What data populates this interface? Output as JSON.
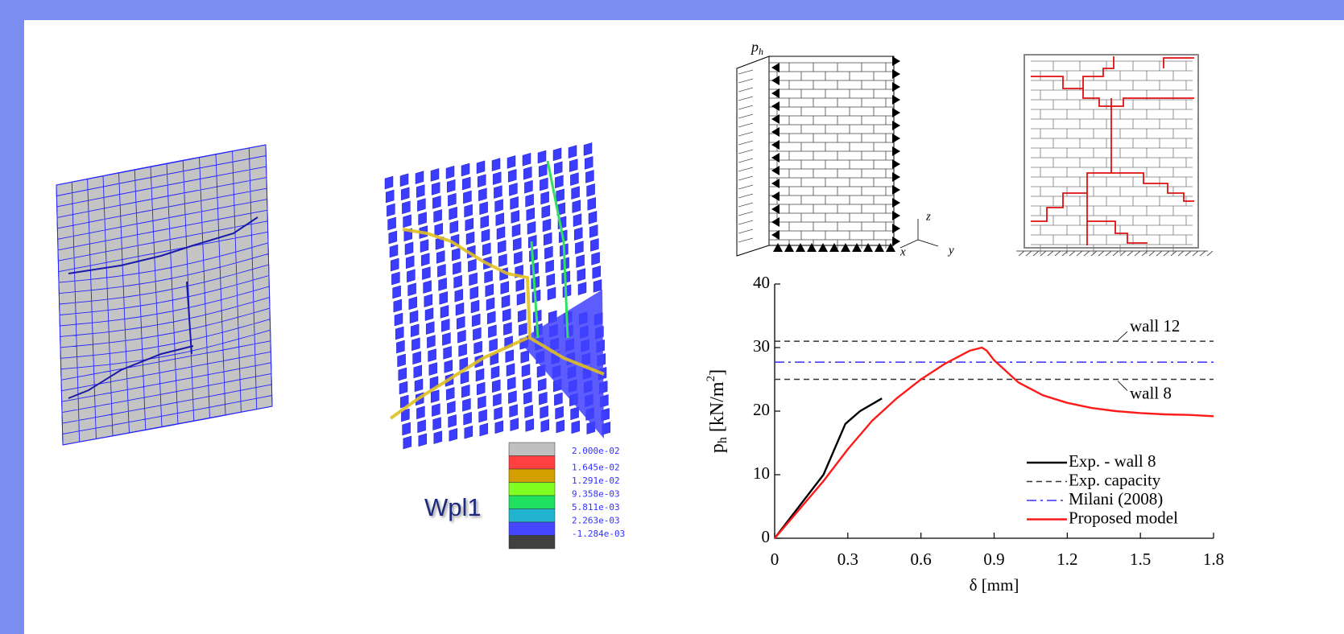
{
  "colorbar": {
    "title": "Wpl1",
    "colors": [
      "#c0c0c0",
      "#ff4040",
      "#d4a000",
      "#80ff20",
      "#20e060",
      "#20b4d0",
      "#4646ff",
      "#404040"
    ],
    "labels": [
      "2.000e-02",
      "1.645e-02",
      "1.291e-02",
      "9.358e-03",
      "5.811e-03",
      "2.263e-03",
      "-1.284e-03"
    ]
  },
  "diagram": {
    "load_label": "p",
    "load_label_sub": "h",
    "axis_labels": [
      "x",
      "y",
      "z"
    ]
  },
  "chart_data": {
    "type": "line",
    "xlabel": "δ [mm]",
    "ylabel": [
      "p",
      "h",
      " [kN/m",
      "2",
      "]"
    ],
    "xlim": [
      0,
      1.8
    ],
    "xticks": [
      0,
      0.3,
      0.6,
      0.9,
      1.2,
      1.5,
      1.8
    ],
    "ylim": [
      0,
      40
    ],
    "yticks": [
      0,
      10,
      20,
      30,
      40
    ],
    "legend": "lower right",
    "series": [
      {
        "name": "Exp. - wall 8",
        "color": "#000000",
        "style": "solid",
        "x": [
          0,
          0.1,
          0.2,
          0.29,
          0.35,
          0.44
        ],
        "values": [
          0,
          5,
          10,
          18,
          20,
          22
        ]
      },
      {
        "name": "Exp. capacity",
        "color": "#333333",
        "style": "dashed",
        "levels": [
          31,
          25
        ],
        "level_labels": [
          "wall 12",
          "wall 8"
        ]
      },
      {
        "name": "Milani (2008)",
        "color": "#3030ff",
        "style": "dashdot",
        "levels": [
          27.7
        ]
      },
      {
        "name": "Proposed model",
        "color": "#ff1a1a",
        "style": "solid",
        "x": [
          0,
          0.1,
          0.2,
          0.3,
          0.4,
          0.5,
          0.6,
          0.7,
          0.8,
          0.85,
          0.87,
          0.9,
          1.0,
          1.1,
          1.2,
          1.3,
          1.4,
          1.5,
          1.6,
          1.7,
          1.8
        ],
        "values": [
          0,
          4.5,
          9,
          14,
          18.5,
          22,
          25,
          27.5,
          29.5,
          30,
          29.5,
          28,
          24.5,
          22.5,
          21.3,
          20.5,
          20,
          19.7,
          19.5,
          19.4,
          19.2
        ]
      }
    ]
  }
}
